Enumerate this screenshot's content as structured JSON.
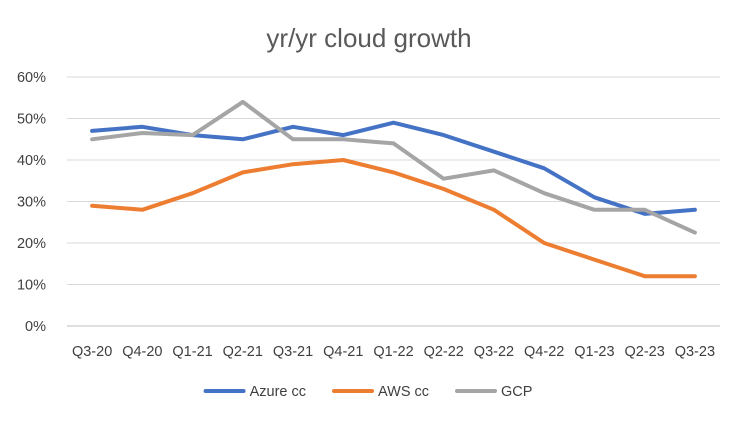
{
  "chart_data": {
    "type": "line",
    "title": "yr/yr cloud growth",
    "xlabel": "",
    "ylabel": "",
    "categories": [
      "Q3-20",
      "Q4-20",
      "Q1-21",
      "Q2-21",
      "Q3-21",
      "Q4-21",
      "Q1-22",
      "Q2-22",
      "Q3-22",
      "Q4-22",
      "Q1-23",
      "Q2-23",
      "Q3-23"
    ],
    "y_ticks": [
      "0%",
      "10%",
      "20%",
      "30%",
      "40%",
      "50%",
      "60%"
    ],
    "ylim": [
      0,
      60
    ],
    "grid": "horizontal",
    "legend_position": "bottom",
    "series": [
      {
        "name": "Azure cc",
        "color": "#4472C4",
        "values": [
          47,
          48,
          46,
          45,
          48,
          46,
          49,
          46,
          42,
          38,
          31,
          27,
          28
        ]
      },
      {
        "name": "AWS cc",
        "color": "#ED7D31",
        "values": [
          29,
          28,
          32,
          37,
          39,
          40,
          37,
          33,
          28,
          20,
          16,
          12,
          12
        ]
      },
      {
        "name": "GCP",
        "color": "#A5A5A5",
        "values": [
          45,
          46.5,
          46,
          54,
          45,
          45,
          44,
          35.5,
          37.5,
          32,
          28,
          28,
          22.5
        ]
      }
    ]
  }
}
